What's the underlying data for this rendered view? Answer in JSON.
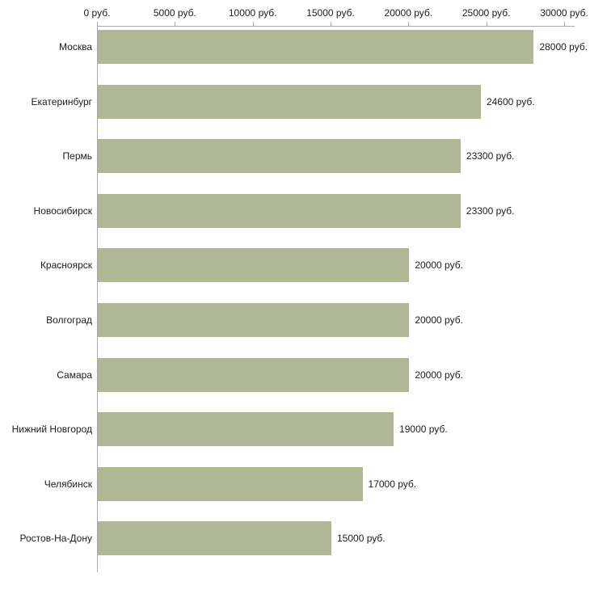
{
  "chart_data": {
    "type": "bar",
    "orientation": "horizontal",
    "title": "",
    "xlabel": "",
    "ylabel": "",
    "xlim": [
      0,
      30000
    ],
    "grid": false,
    "legend": null,
    "bar_color": "#b0b795",
    "axis_color": "#a9a9a9",
    "text_color": "#1c1c1c",
    "categories": [
      "Москва",
      "Екатеринбург",
      "Пермь",
      "Новосибирск",
      "Красноярск",
      "Волгоград",
      "Самара",
      "Нижний Новгород",
      "Челябинск",
      "Ростов-На-Дону"
    ],
    "values": [
      28000,
      24600,
      23300,
      23300,
      20000,
      20000,
      20000,
      19000,
      17000,
      15000
    ],
    "value_labels": [
      "28000 руб.",
      "24600 руб.",
      "23300 руб.",
      "23300 руб.",
      "20000 руб.",
      "20000 руб.",
      "20000 руб.",
      "19000 руб.",
      "17000 руб.",
      "15000 руб."
    ],
    "x_ticks": [
      0,
      5000,
      10000,
      15000,
      20000,
      25000,
      30000
    ],
    "x_tick_labels": [
      "0 руб.",
      "5000 руб.",
      "10000 руб.",
      "15000 руб.",
      "20000 руб.",
      "25000 руб.",
      "30000 руб."
    ]
  }
}
